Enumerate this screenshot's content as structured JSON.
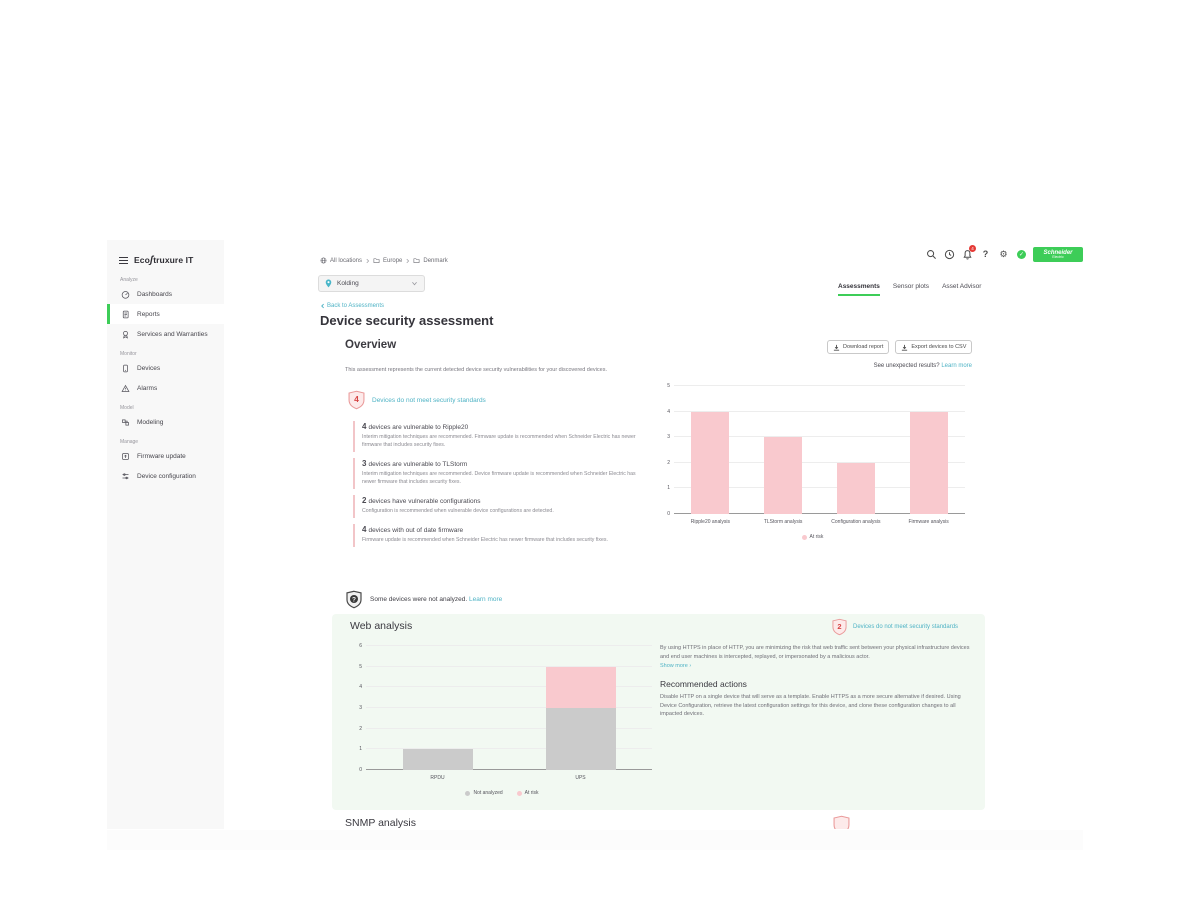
{
  "sidebar": {
    "brand_pre": "Eco",
    "brand_glyph": "ʃ",
    "brand_post": "truxure IT",
    "sections": [
      {
        "label": "Analyze",
        "items": [
          {
            "label": "Dashboards"
          },
          {
            "label": "Reports"
          },
          {
            "label": "Services and Warranties"
          }
        ]
      },
      {
        "label": "Monitor",
        "items": [
          {
            "label": "Devices"
          },
          {
            "label": "Alarms"
          }
        ]
      },
      {
        "label": "Model",
        "items": [
          {
            "label": "Modeling"
          }
        ]
      },
      {
        "label": "Manage",
        "items": [
          {
            "label": "Firmware update"
          },
          {
            "label": "Device configuration"
          }
        ]
      }
    ]
  },
  "topbar": {
    "notifications_count": "4",
    "help_glyph": "?",
    "gear_glyph": "⚙",
    "avatar_glyph": "✓",
    "logo_line1": "Schneider",
    "logo_line2": "Electric"
  },
  "breadcrumb": {
    "items": [
      "All locations",
      "Europe",
      "Denmark"
    ]
  },
  "location_selector": {
    "value": "Kolding"
  },
  "tabs": [
    {
      "label": "Assessments"
    },
    {
      "label": "Sensor plots"
    },
    {
      "label": "Asset Advisor"
    }
  ],
  "page": {
    "back_link": "Back to Assessments",
    "title": "Device security assessment"
  },
  "overview": {
    "heading": "Overview",
    "download_button": "Download report",
    "export_button": "Export devices to CSV",
    "unexpected_text": "See unexpected results?",
    "learn_more": "Learn more",
    "description": "This assessment represents the current detected device security vulnerabilities for your discovered devices.",
    "badge": {
      "count": "4",
      "label": "Devices do not meet security standards"
    },
    "findings": [
      {
        "count": "4",
        "title": "devices are vulnerable to Ripple20",
        "description": "Interim mitigation techniques are recommended. Firmware update is recommended when Schneider Electric has newer firmware that includes security fixes."
      },
      {
        "count": "3",
        "title": "devices are vulnerable to TLStorm",
        "description": "Interim mitigation techniques are recommended. Device firmware update is recommended when Schneider Electric has newer firmware that includes security fixes."
      },
      {
        "count": "2",
        "title": "devices have vulnerable configurations",
        "description": "Configuration is recommended when vulnerable device configurations are detected."
      },
      {
        "count": "4",
        "title": "devices with out of date firmware",
        "description": "Firmware update is recommended when Schneider Electric has newer firmware that includes security fixes."
      }
    ],
    "not_analyzed_text": "Some devices were not analyzed.",
    "not_analyzed_link": "Learn more"
  },
  "web_analysis": {
    "heading": "Web analysis",
    "badge": {
      "count": "2",
      "label": "Devices do not meet security standards"
    },
    "paragraph": "By using HTTPS in place of HTTP, you are minimizing the risk that web traffic sent between your physical infrastructure devices and end user machines is intercepted, replayed, or impersonated by a malicious actor.",
    "show_more": "Show more ›",
    "recommended_heading": "Recommended actions",
    "recommended_text": "Disable HTTP on a single device that will serve as a template. Enable HTTPS as a more secure alternative if desired. Using Device Configuration, retrieve the latest configuration settings for this device, and clone these configuration changes to all impacted devices."
  },
  "snmp": {
    "heading": "SNMP analysis"
  },
  "colors": {
    "accent_green": "#3dcd58",
    "link_teal": "#4fb3c5",
    "risk_pink": "#f9c9ce",
    "not_analyzed_gray": "#cbcbcb",
    "badge_red": "#d64545"
  },
  "chart_data": [
    {
      "id": "overview-analysis-chart",
      "type": "bar",
      "title": "",
      "categories": [
        "Ripple20 analysis",
        "TLStorm analysis",
        "Configuration analysis",
        "Firmware analysis"
      ],
      "series": [
        {
          "name": "At risk",
          "color": "#f9c9ce",
          "values": [
            4,
            3,
            2,
            4
          ]
        }
      ],
      "xlabel": "",
      "ylabel": "",
      "ylim": [
        0,
        5
      ],
      "ytick_step": 1,
      "grid": true,
      "legend_position": "bottom"
    },
    {
      "id": "web-analysis-chart",
      "type": "stacked-bar",
      "title": "",
      "categories": [
        "RPDU",
        "UPS"
      ],
      "series": [
        {
          "name": "Not analyzed",
          "color": "#cbcbcb",
          "values": [
            1,
            3
          ]
        },
        {
          "name": "At risk",
          "color": "#f9c9ce",
          "values": [
            0,
            2
          ]
        }
      ],
      "xlabel": "",
      "ylabel": "",
      "ylim": [
        0,
        6
      ],
      "ytick_step": 1,
      "grid": true,
      "legend_position": "bottom"
    }
  ]
}
